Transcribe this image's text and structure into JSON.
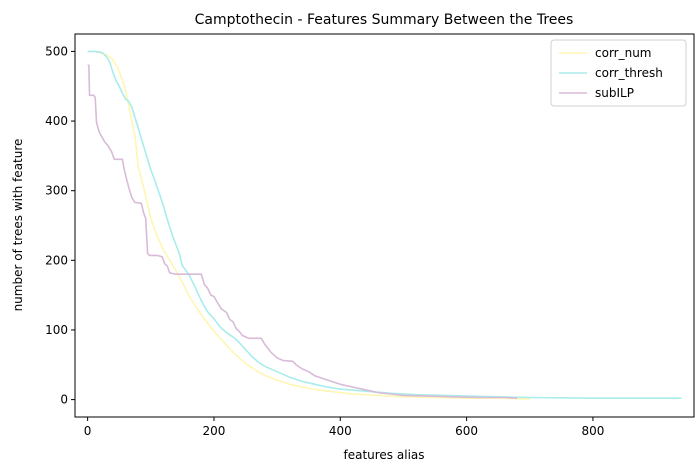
{
  "chart_data": {
    "type": "line",
    "title": "Camptothecin - Features Summary Between the Trees",
    "xlabel": "features alias",
    "ylabel": "number of trees with feature",
    "xlim": [
      -20,
      960
    ],
    "ylim": [
      -25,
      525
    ],
    "xticks": [
      0,
      200,
      400,
      600,
      800
    ],
    "yticks": [
      0,
      100,
      200,
      300,
      400,
      500
    ],
    "grid": false,
    "legend_position": "top-right",
    "series": [
      {
        "name": "corr_num",
        "color": "#fff6b3",
        "points": [
          [
            0,
            500
          ],
          [
            10,
            500
          ],
          [
            20,
            498
          ],
          [
            30,
            495
          ],
          [
            40,
            488
          ],
          [
            50,
            472
          ],
          [
            60,
            445
          ],
          [
            70,
            400
          ],
          [
            75,
            378
          ],
          [
            80,
            335
          ],
          [
            90,
            300
          ],
          [
            100,
            260
          ],
          [
            110,
            235
          ],
          [
            120,
            215
          ],
          [
            130,
            200
          ],
          [
            140,
            185
          ],
          [
            150,
            168
          ],
          [
            160,
            150
          ],
          [
            170,
            135
          ],
          [
            180,
            122
          ],
          [
            190,
            110
          ],
          [
            200,
            98
          ],
          [
            210,
            88
          ],
          [
            220,
            78
          ],
          [
            230,
            68
          ],
          [
            240,
            60
          ],
          [
            250,
            52
          ],
          [
            260,
            46
          ],
          [
            270,
            40
          ],
          [
            280,
            35
          ],
          [
            300,
            28
          ],
          [
            320,
            22
          ],
          [
            350,
            16
          ],
          [
            380,
            12
          ],
          [
            420,
            8
          ],
          [
            460,
            6
          ],
          [
            500,
            4
          ],
          [
            550,
            3
          ],
          [
            600,
            2
          ],
          [
            650,
            2
          ],
          [
            700,
            1
          ]
        ]
      },
      {
        "name": "corr_thresh",
        "color": "#a8ecec",
        "points": [
          [
            0,
            500
          ],
          [
            10,
            500
          ],
          [
            20,
            499
          ],
          [
            25,
            497
          ],
          [
            30,
            492
          ],
          [
            35,
            485
          ],
          [
            40,
            470
          ],
          [
            45,
            458
          ],
          [
            50,
            450
          ],
          [
            55,
            440
          ],
          [
            60,
            432
          ],
          [
            65,
            428
          ],
          [
            70,
            420
          ],
          [
            75,
            405
          ],
          [
            80,
            390
          ],
          [
            85,
            375
          ],
          [
            90,
            360
          ],
          [
            95,
            345
          ],
          [
            100,
            330
          ],
          [
            105,
            318
          ],
          [
            110,
            305
          ],
          [
            115,
            292
          ],
          [
            120,
            278
          ],
          [
            125,
            262
          ],
          [
            130,
            248
          ],
          [
            135,
            234
          ],
          [
            140,
            222
          ],
          [
            145,
            210
          ],
          [
            150,
            192
          ],
          [
            160,
            180
          ],
          [
            170,
            162
          ],
          [
            180,
            142
          ],
          [
            190,
            126
          ],
          [
            200,
            116
          ],
          [
            210,
            104
          ],
          [
            220,
            96
          ],
          [
            230,
            90
          ],
          [
            240,
            82
          ],
          [
            250,
            72
          ],
          [
            260,
            62
          ],
          [
            270,
            54
          ],
          [
            280,
            48
          ],
          [
            300,
            40
          ],
          [
            320,
            32
          ],
          [
            340,
            26
          ],
          [
            360,
            22
          ],
          [
            380,
            18
          ],
          [
            400,
            15
          ],
          [
            440,
            12
          ],
          [
            480,
            9
          ],
          [
            520,
            7
          ],
          [
            600,
            5
          ],
          [
            700,
            3
          ],
          [
            800,
            2
          ],
          [
            940,
            2
          ]
        ]
      },
      {
        "name": "subILP",
        "color": "#d8bbd8",
        "points": [
          [
            0,
            480
          ],
          [
            2,
            480
          ],
          [
            3,
            437
          ],
          [
            10,
            437
          ],
          [
            12,
            434
          ],
          [
            14,
            398
          ],
          [
            18,
            385
          ],
          [
            22,
            378
          ],
          [
            27,
            370
          ],
          [
            32,
            365
          ],
          [
            38,
            356
          ],
          [
            42,
            345
          ],
          [
            55,
            345
          ],
          [
            58,
            330
          ],
          [
            62,
            315
          ],
          [
            65,
            305
          ],
          [
            70,
            290
          ],
          [
            75,
            283
          ],
          [
            85,
            282
          ],
          [
            88,
            270
          ],
          [
            92,
            260
          ],
          [
            95,
            210
          ],
          [
            98,
            207
          ],
          [
            110,
            207
          ],
          [
            118,
            205
          ],
          [
            122,
            195
          ],
          [
            126,
            192
          ],
          [
            130,
            182
          ],
          [
            140,
            180
          ],
          [
            180,
            180
          ],
          [
            185,
            165
          ],
          [
            190,
            160
          ],
          [
            195,
            150
          ],
          [
            200,
            148
          ],
          [
            205,
            140
          ],
          [
            212,
            130
          ],
          [
            220,
            125
          ],
          [
            225,
            115
          ],
          [
            230,
            112
          ],
          [
            235,
            102
          ],
          [
            240,
            98
          ],
          [
            245,
            92
          ],
          [
            255,
            88
          ],
          [
            275,
            88
          ],
          [
            280,
            80
          ],
          [
            290,
            68
          ],
          [
            300,
            60
          ],
          [
            310,
            56
          ],
          [
            325,
            55
          ],
          [
            330,
            50
          ],
          [
            340,
            44
          ],
          [
            350,
            40
          ],
          [
            360,
            34
          ],
          [
            380,
            28
          ],
          [
            400,
            22
          ],
          [
            420,
            18
          ],
          [
            440,
            14
          ],
          [
            460,
            10
          ],
          [
            480,
            8
          ],
          [
            500,
            6
          ],
          [
            540,
            5
          ],
          [
            580,
            4
          ],
          [
            620,
            3
          ],
          [
            660,
            3
          ],
          [
            680,
            2
          ]
        ]
      }
    ]
  }
}
